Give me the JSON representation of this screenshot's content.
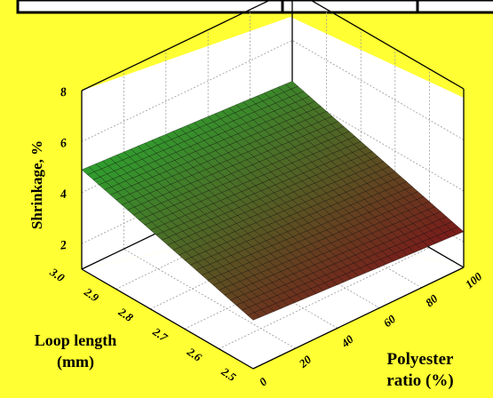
{
  "colors": {
    "background": "#FFFF33",
    "frame_border": "#000000",
    "plot_wall": "#FFFFFF",
    "surface_low": "#7a1a1a",
    "surface_high": "#2ea02e",
    "mesh": "#000000"
  },
  "chart_data": {
    "type": "surface3d",
    "title": "",
    "x_axis": {
      "label_line1": "Polyester",
      "label_line2": "ratio (%)",
      "ticks": [
        "0",
        "20",
        "40",
        "60",
        "80",
        "100"
      ],
      "range": [
        0,
        100
      ]
    },
    "y_axis": {
      "label_line1": "Loop length",
      "label_line2": "(mm)",
      "ticks": [
        "2.5",
        "2.6",
        "2.7",
        "2.8",
        "2.9",
        "3.0"
      ],
      "range": [
        2.5,
        3.0
      ]
    },
    "z_axis": {
      "label": "Shrinkage, %",
      "ticks": [
        "2",
        "4",
        "6",
        "8"
      ],
      "range": [
        1,
        8
      ]
    },
    "surface_corners": [
      {
        "polyester": 0,
        "loop_length": 3.0,
        "shrinkage": 4.9
      },
      {
        "polyester": 100,
        "loop_length": 3.0,
        "shrinkage": 4.4
      },
      {
        "polyester": 100,
        "loop_length": 2.5,
        "shrinkage": 2.4
      },
      {
        "polyester": 0,
        "loop_length": 2.5,
        "shrinkage": 2.9
      }
    ],
    "grid": true
  }
}
